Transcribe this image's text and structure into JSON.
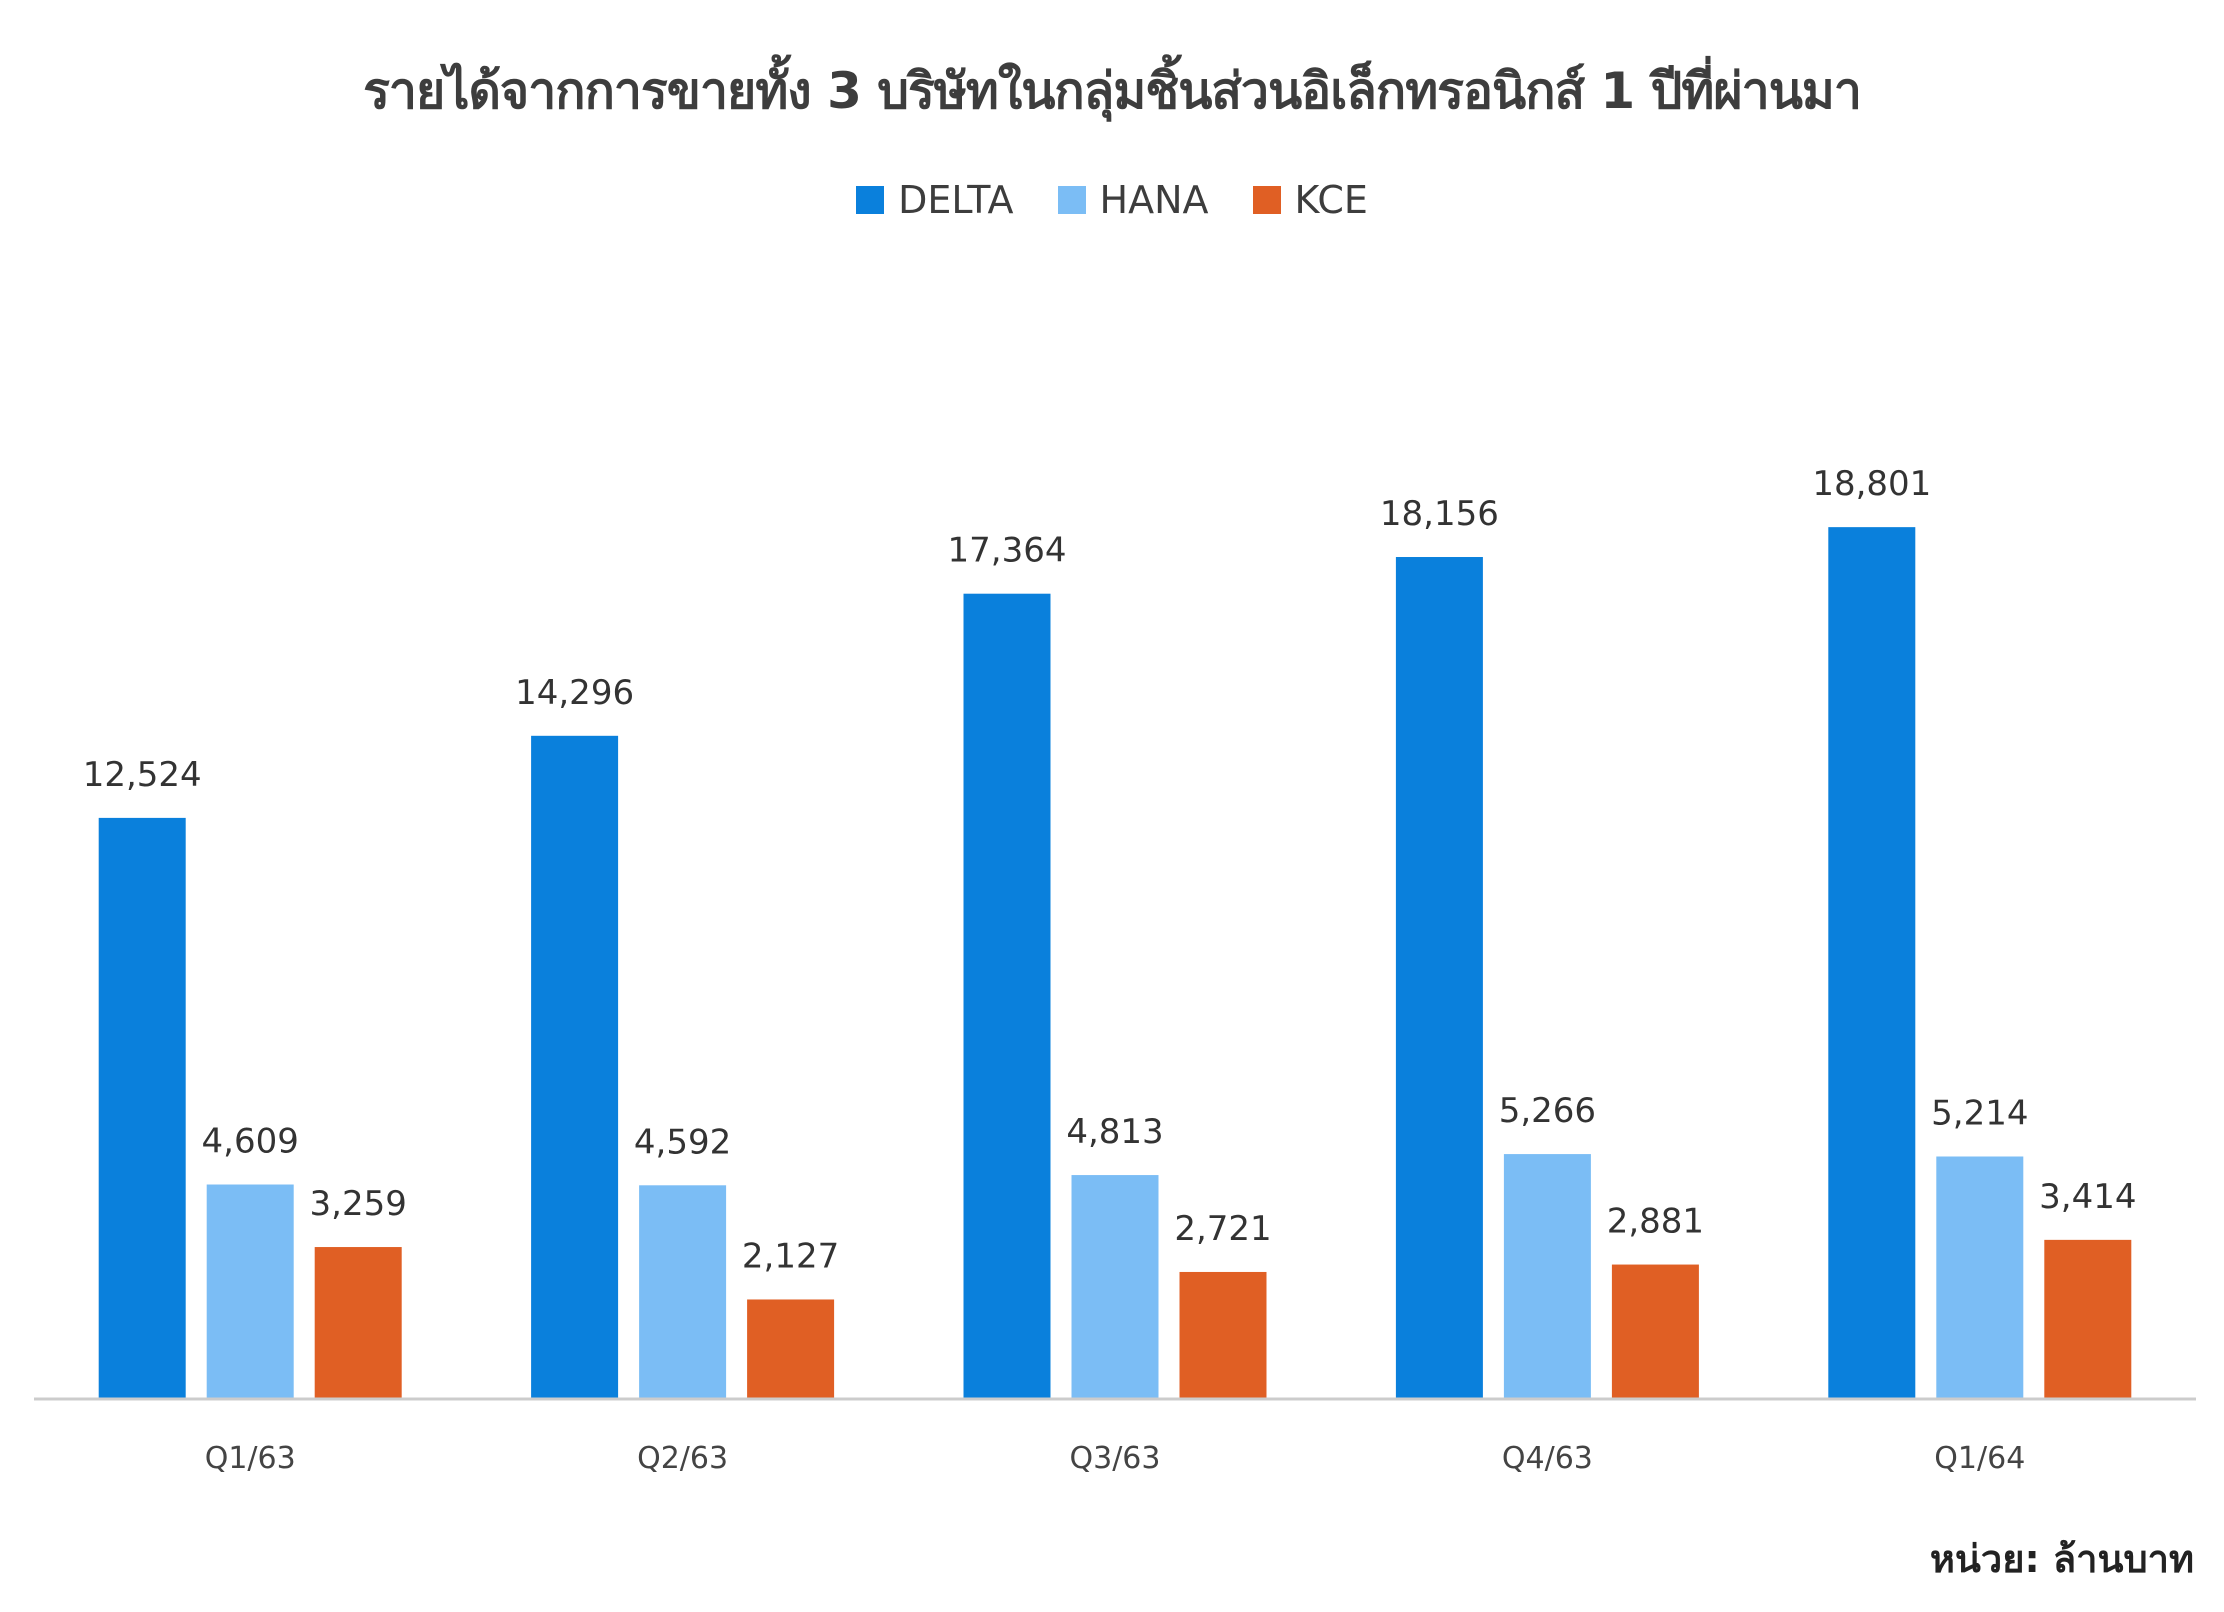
{
  "chart_data": {
    "type": "bar",
    "title": "รายได้จากการขายทั้ง 3 บริษัทในกลุ่มชิ้นส่วนอิเล็กทรอนิกส์ 1 ปีที่ผ่านมา",
    "categories": [
      "Q1/63",
      "Q2/63",
      "Q3/63",
      "Q4/63",
      "Q1/64"
    ],
    "series": [
      {
        "name": "DELTA",
        "color": "#0a80dc",
        "values": [
          12524,
          14296,
          17364,
          18156,
          18801
        ]
      },
      {
        "name": "HANA",
        "color": "#7bbdf5",
        "values": [
          4609,
          4592,
          4813,
          5266,
          5214
        ]
      },
      {
        "name": "KCE",
        "color": "#e05f24",
        "values": [
          3259,
          2127,
          2721,
          2881,
          3414
        ]
      }
    ],
    "value_labels": [
      [
        "12,524",
        "14,296",
        "17,364",
        "18,156",
        "18,801"
      ],
      [
        "4,609",
        "4,592",
        "4,813",
        "5,266",
        "5,214"
      ],
      [
        "3,259",
        "2,127",
        "2,721",
        "2,881",
        "3,414"
      ]
    ],
    "xlabel": "",
    "ylabel": "",
    "ylim": [
      0,
      25000
    ],
    "grid": false,
    "legend_position": "top-center",
    "unit_note": "หน่วย: ล้านบาท"
  }
}
